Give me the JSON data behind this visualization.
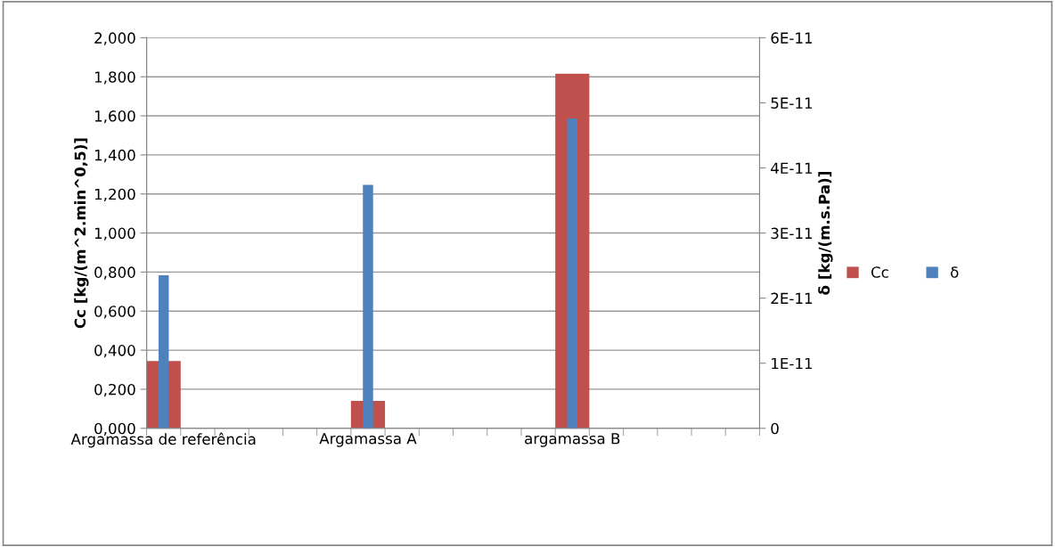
{
  "chart_data": {
    "type": "bar",
    "categories": [
      "Argamassa de referência",
      null,
      null,
      null,
      null,
      null,
      "Argamassa A",
      null,
      null,
      null,
      null,
      null,
      "argamassa B",
      null,
      null,
      null,
      null,
      null
    ],
    "series": [
      {
        "name": "Cc",
        "color": "#c0504d",
        "values": [
          0.345,
          null,
          null,
          null,
          null,
          null,
          0.14,
          null,
          null,
          null,
          null,
          null,
          1.816,
          null,
          null,
          null,
          null,
          null
        ]
      },
      {
        "name": "δ",
        "color": "#4f81bd",
        "axis": "y2",
        "values": [
          2.35e-11,
          null,
          null,
          null,
          null,
          null,
          3.74e-11,
          null,
          null,
          null,
          null,
          null,
          4.76e-11,
          null,
          null,
          null,
          null,
          null
        ]
      }
    ],
    "ylabel": "Cc [kg/(m^2.min^0,5)]",
    "y2label": "δ [kg/(m.s.Pa)]",
    "ylim": [
      0,
      2
    ],
    "yticks": [
      {
        "value": 0,
        "label": "0,000"
      },
      {
        "value": 0.2,
        "label": "0,200"
      },
      {
        "value": 0.4,
        "label": "0,400"
      },
      {
        "value": 0.6,
        "label": "0,600"
      },
      {
        "value": 0.8,
        "label": "0,800"
      },
      {
        "value": 1.0,
        "label": "1,000"
      },
      {
        "value": 1.2,
        "label": "1,200"
      },
      {
        "value": 1.4,
        "label": "1,400"
      },
      {
        "value": 1.6,
        "label": "1,600"
      },
      {
        "value": 1.8,
        "label": "1,800"
      },
      {
        "value": 2.0,
        "label": "2,000"
      }
    ],
    "y2lim": [
      0,
      6e-11
    ],
    "y2ticks": [
      0,
      {
        "value": 1e-11,
        "label": "1E-11"
      },
      {
        "value": 2e-11,
        "label": "2E-11"
      },
      {
        "value": 3e-11,
        "label": "3E-11"
      },
      {
        "value": 4e-11,
        "label": "4E-11"
      },
      {
        "value": 5e-11,
        "label": "5E-11"
      },
      {
        "value": 6e-11,
        "label": "6E-11"
      }
    ],
    "grid": "y",
    "legend": "right"
  }
}
